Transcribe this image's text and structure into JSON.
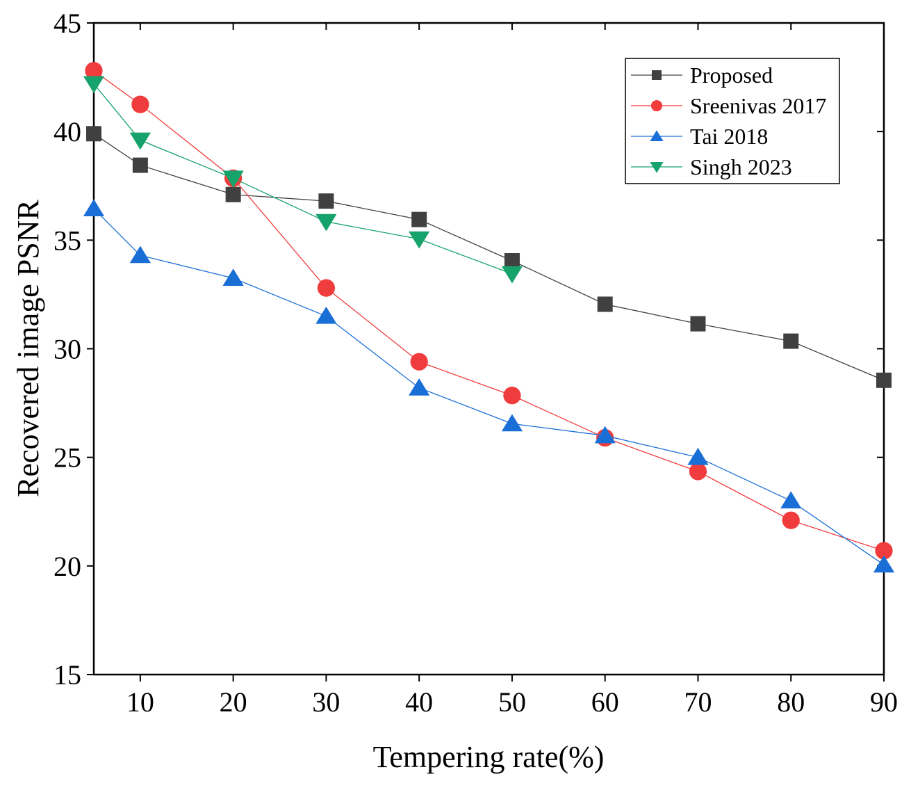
{
  "chart_data": {
    "type": "line",
    "title": "",
    "xlabel": "Tempering rate(%)",
    "ylabel": "Recovered image PSNR",
    "xlim": [
      5,
      90
    ],
    "ylim": [
      15,
      45
    ],
    "xticks": [
      10,
      20,
      30,
      40,
      50,
      60,
      70,
      80,
      90
    ],
    "yticks": [
      15,
      20,
      25,
      30,
      35,
      40,
      45
    ],
    "grid": false,
    "legend_position": "top-right",
    "series": [
      {
        "name": "Proposed",
        "color": "#404040",
        "marker": "square",
        "x": [
          5,
          10,
          20,
          30,
          40,
          50,
          60,
          70,
          80,
          90
        ],
        "values": [
          39.9,
          38.45,
          37.1,
          36.8,
          35.95,
          34.05,
          32.05,
          31.15,
          30.35,
          28.55
        ]
      },
      {
        "name": "Sreenivas 2017",
        "color": "#f03c3c",
        "marker": "circle",
        "x": [
          5,
          10,
          20,
          30,
          40,
          50,
          60,
          70,
          80,
          90
        ],
        "values": [
          42.8,
          41.25,
          37.85,
          32.8,
          29.4,
          27.85,
          25.9,
          24.35,
          22.1,
          20.7
        ]
      },
      {
        "name": "Tai 2018",
        "color": "#1a6fd6",
        "marker": "triangle-up",
        "x": [
          5,
          10,
          20,
          30,
          40,
          50,
          60,
          70,
          80,
          90
        ],
        "values": [
          36.45,
          34.3,
          33.25,
          31.5,
          28.2,
          26.55,
          26.0,
          25.0,
          23.0,
          20.05
        ]
      },
      {
        "name": "Singh 2023",
        "color": "#16a36b",
        "marker": "triangle-down",
        "x": [
          5,
          10,
          20,
          30,
          40,
          50
        ],
        "values": [
          42.2,
          39.6,
          37.85,
          35.85,
          35.05,
          33.45
        ]
      }
    ]
  }
}
